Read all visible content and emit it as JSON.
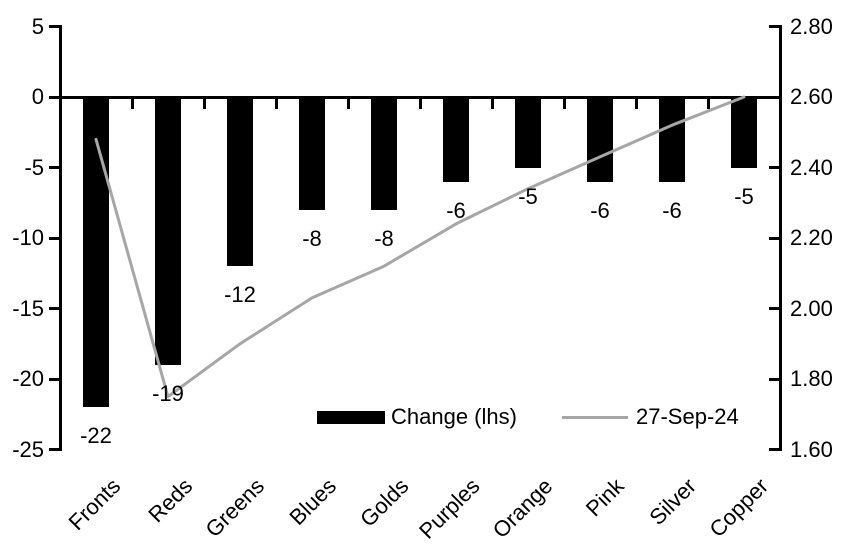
{
  "chart_data": {
    "type": "bar",
    "subtype": "combo-bar-line-dual-axis",
    "title": "",
    "xlabel": "",
    "ylabel_left": "",
    "ylabel_right": "",
    "grid": false,
    "background": "#ffffff",
    "categories": [
      "Fronts",
      "Reds",
      "Greens",
      "Blues",
      "Golds",
      "Purples",
      "Orange",
      "Pink",
      "Silver",
      "Copper"
    ],
    "series": [
      {
        "name": "Change (lhs)",
        "type": "bar",
        "axis": "left",
        "color": "#000000",
        "values": [
          -22,
          -19,
          -12,
          -8,
          -8,
          -6,
          -5,
          -6,
          -6,
          -5
        ],
        "data_labels": [
          "-22",
          "-19",
          "-12",
          "-8",
          "-8",
          "-6",
          "-5",
          "-6",
          "-6",
          "-5"
        ]
      },
      {
        "name": "27-Sep-24",
        "type": "line",
        "axis": "right",
        "color": "#a6a6a6",
        "values": [
          2.48,
          1.75,
          1.9,
          2.03,
          2.12,
          2.24,
          2.34,
          2.43,
          2.52,
          2.6
        ]
      }
    ],
    "left_axis": {
      "min": -25,
      "max": 5,
      "step": 5,
      "tick_labels": [
        "5",
        "0",
        "-5",
        "-10",
        "-15",
        "-20",
        "-25"
      ],
      "color": "#000000"
    },
    "right_axis": {
      "min": 1.6,
      "max": 2.8,
      "step": 0.2,
      "tick_labels": [
        "2.80",
        "2.60",
        "2.40",
        "2.20",
        "2.00",
        "1.80",
        "1.60"
      ],
      "color": "#000000"
    },
    "legend": {
      "position": "inside-bottom",
      "items": [
        {
          "label": "Change (lhs)",
          "swatch": "bar",
          "color": "#000000"
        },
        {
          "label": "27-Sep-24",
          "swatch": "line",
          "color": "#a6a6a6"
        }
      ]
    }
  }
}
